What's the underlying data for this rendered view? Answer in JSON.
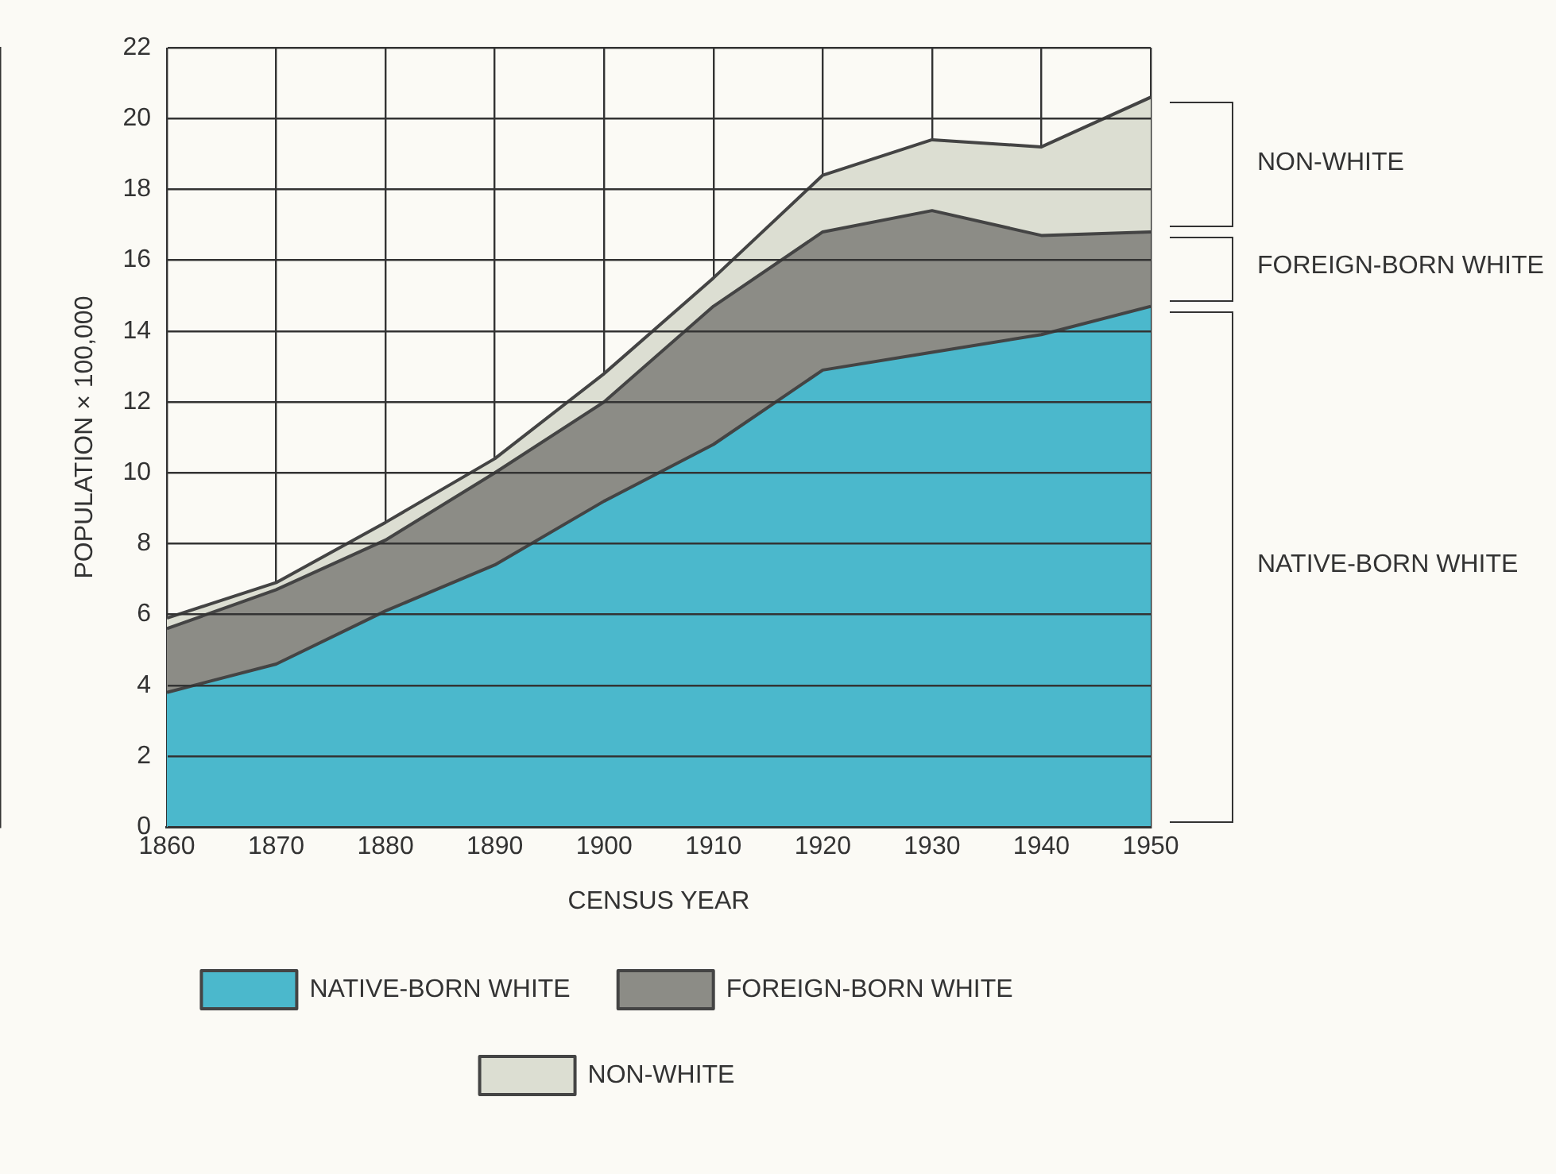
{
  "chart_data": {
    "type": "area",
    "stacked": true,
    "xlabel": "CENSUS YEAR",
    "ylabel": "POPULATION × 100,000",
    "x": [
      1860,
      1870,
      1880,
      1890,
      1900,
      1910,
      1920,
      1930,
      1940,
      1950
    ],
    "series": [
      {
        "name": "NATIVE-BORN WHITE",
        "color": "#4bb8cc",
        "values": [
          3.8,
          4.6,
          6.1,
          7.4,
          9.2,
          10.8,
          12.9,
          13.4,
          13.9,
          14.7
        ]
      },
      {
        "name": "FOREIGN-BORN WHITE",
        "color": "#8c8c86",
        "values": [
          1.8,
          2.1,
          2.0,
          2.6,
          2.8,
          3.9,
          3.9,
          4.0,
          2.8,
          2.1
        ]
      },
      {
        "name": "NON-WHITE",
        "color": "#dcded2",
        "values": [
          0.3,
          0.2,
          0.5,
          0.4,
          0.8,
          0.8,
          1.6,
          2.0,
          2.5,
          3.8
        ]
      }
    ],
    "annotations": [
      "NON-WHITE",
      "FOREIGN-BORN WHITE",
      "NATIVE-BORN WHITE"
    ],
    "xlim": [
      1860,
      1950
    ],
    "xticks": [
      1860,
      1870,
      1880,
      1890,
      1900,
      1910,
      1920,
      1930,
      1940,
      1950
    ],
    "ylim": [
      0,
      22
    ],
    "yticks": [
      0,
      2,
      4,
      6,
      8,
      10,
      12,
      14,
      16,
      18,
      20,
      22
    ],
    "grid": true,
    "legend": "bottom"
  }
}
